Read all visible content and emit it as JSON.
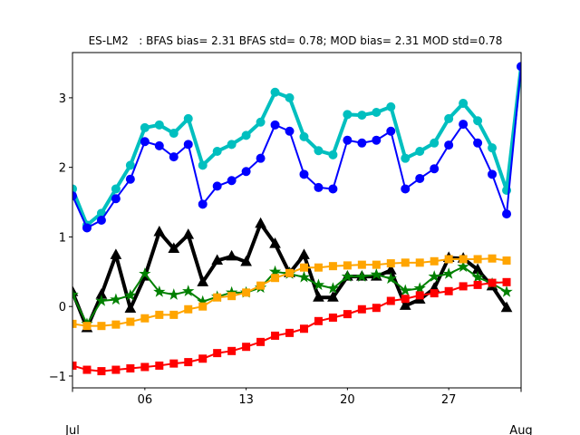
{
  "chart_data": {
    "type": "line",
    "title": "ES-LM2   : BFAS bias= 2.31 BFAS std= 0.78; MOD bias= 2.31 MOD std=0.78",
    "x": [
      1,
      2,
      3,
      4,
      5,
      6,
      7,
      8,
      9,
      10,
      11,
      12,
      13,
      14,
      15,
      16,
      17,
      18,
      19,
      20,
      21,
      22,
      23,
      24,
      25,
      26,
      27,
      28,
      29,
      30,
      31,
      32
    ],
    "xlim": [
      1,
      32
    ],
    "xticks": [
      {
        "value": 6,
        "label": "06"
      },
      {
        "value": 13,
        "label": "13"
      },
      {
        "value": 20,
        "label": "20"
      },
      {
        "value": 27,
        "label": "27"
      }
    ],
    "xticks_major": [
      {
        "value": 1,
        "label": "Jul"
      },
      {
        "value": 32,
        "label": "Aug"
      }
    ],
    "ylim": [
      -1.17,
      3.65
    ],
    "yticks": [
      {
        "value": -1,
        "label": "−1"
      },
      0,
      1,
      2,
      3
    ],
    "grid": false,
    "series": [
      {
        "color": "#00bfbf",
        "marker": "circle",
        "linewidth": 4,
        "values": [
          1.69,
          1.17,
          1.34,
          1.69,
          2.03,
          2.57,
          2.61,
          2.49,
          2.7,
          2.03,
          2.23,
          2.33,
          2.46,
          2.65,
          3.08,
          3.0,
          2.44,
          2.24,
          2.18,
          2.76,
          2.75,
          2.79,
          2.87,
          2.13,
          2.23,
          2.35,
          2.7,
          2.92,
          2.67,
          2.28,
          1.67,
          3.45
        ]
      },
      {
        "color": "#0000ff",
        "marker": "circle",
        "linewidth": 2,
        "values": [
          1.59,
          1.13,
          1.24,
          1.55,
          1.83,
          2.37,
          2.31,
          2.15,
          2.33,
          1.47,
          1.73,
          1.81,
          1.94,
          2.13,
          2.61,
          2.52,
          1.9,
          1.71,
          1.69,
          2.39,
          2.35,
          2.39,
          2.52,
          1.69,
          1.84,
          1.98,
          2.32,
          2.62,
          2.35,
          1.9,
          1.33,
          3.45
        ]
      },
      {
        "color": "#000000",
        "marker": "triangle",
        "linewidth": 4,
        "values": [
          0.21,
          -0.31,
          0.17,
          0.74,
          -0.03,
          0.43,
          1.07,
          0.83,
          1.03,
          0.35,
          0.66,
          0.72,
          0.64,
          1.19,
          0.9,
          0.48,
          0.74,
          0.13,
          0.13,
          0.43,
          0.43,
          0.43,
          0.52,
          0.01,
          0.1,
          0.26,
          0.7,
          0.69,
          0.53,
          0.29,
          -0.02,
          null
        ]
      },
      {
        "color": "#008000",
        "marker": "star",
        "linewidth": 2,
        "values": [
          0.17,
          -0.25,
          0.08,
          0.1,
          0.16,
          0.47,
          0.21,
          0.17,
          0.22,
          0.07,
          0.14,
          0.2,
          0.2,
          0.27,
          0.5,
          0.47,
          0.42,
          0.31,
          0.26,
          0.43,
          0.43,
          0.46,
          0.4,
          0.23,
          0.26,
          0.43,
          0.47,
          0.57,
          0.42,
          0.33,
          0.21,
          null
        ]
      },
      {
        "color": "#ffa500",
        "marker": "square",
        "linewidth": 2,
        "values": [
          -0.25,
          -0.28,
          -0.28,
          -0.26,
          -0.22,
          -0.17,
          -0.12,
          -0.12,
          -0.04,
          0.0,
          0.13,
          0.15,
          0.2,
          0.3,
          0.41,
          0.48,
          0.56,
          0.56,
          0.58,
          0.59,
          0.6,
          0.6,
          0.62,
          0.63,
          0.63,
          0.65,
          0.68,
          0.68,
          0.68,
          0.69,
          0.66,
          null
        ]
      },
      {
        "color": "#ff0000",
        "marker": "square",
        "linewidth": 2,
        "values": [
          -0.85,
          -0.91,
          -0.93,
          -0.91,
          -0.89,
          -0.87,
          -0.85,
          -0.82,
          -0.8,
          -0.75,
          -0.67,
          -0.64,
          -0.58,
          -0.51,
          -0.42,
          -0.38,
          -0.32,
          -0.21,
          -0.16,
          -0.11,
          -0.04,
          -0.02,
          0.08,
          0.11,
          0.16,
          0.19,
          0.22,
          0.29,
          0.31,
          0.34,
          0.35,
          null
        ]
      }
    ]
  }
}
